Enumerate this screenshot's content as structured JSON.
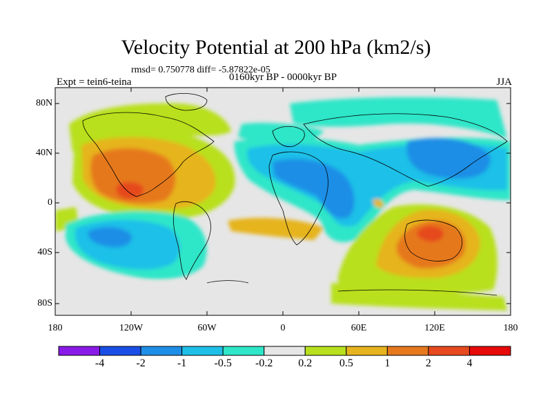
{
  "title": "Velocity Potential at 200 hPa (km2/s)",
  "stats": "rmsd= 0.750778  diff= -5.87822e-05",
  "left_label": "Expt = tein6-teina",
  "center_label": "0160kyr BP - 0000kyr BP",
  "right_label": "JJA",
  "axes": {
    "y_ticks": [
      "80N",
      "40N",
      "0",
      "40S",
      "80S"
    ],
    "x_ticks": [
      "180",
      "120W",
      "60W",
      "0",
      "60E",
      "120E",
      "180"
    ]
  },
  "colorbar": {
    "labels": [
      "-4",
      "-2",
      "-1",
      "-0.5",
      "-0.2",
      "0.2",
      "0.5",
      "1",
      "2",
      "4"
    ],
    "colors": [
      "#8a1ae8",
      "#1a4ee6",
      "#1e8ee6",
      "#1ec0e8",
      "#2ee6c8",
      "#e6e6e6",
      "#b8e01e",
      "#e6b41e",
      "#e6781e",
      "#e64a1e",
      "#e60a0a"
    ]
  }
}
